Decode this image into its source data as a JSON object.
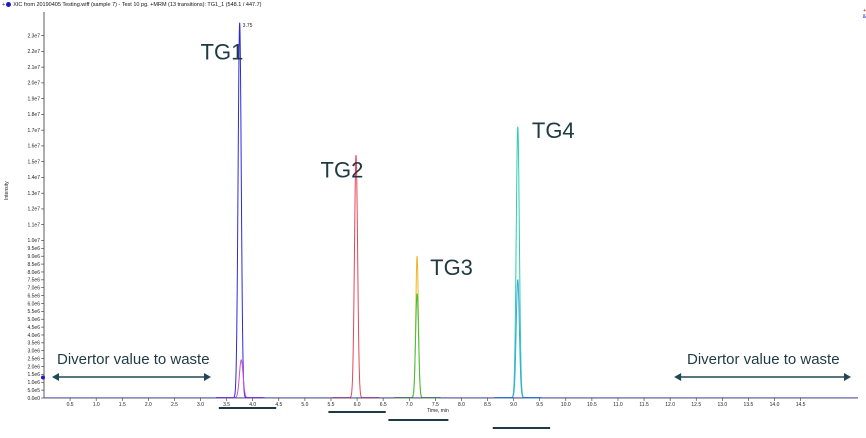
{
  "header": {
    "title": "XIC from 20190405 Testing.wiff (sample 7) - Test 10 pg. +MRM (13 transitions): TG1_1 (548.1 / 447.7)"
  },
  "legend_marks": [
    "+",
    "&"
  ],
  "chart_data": {
    "type": "line",
    "title": "XIC from 20190405 Testing.wiff (sample 7) - Test 10 pg. +MRM (13 transitions): TG1_1 (548.1 / 447.7)",
    "xlabel": "Time, min",
    "ylabel": "Intensity",
    "xlim": [
      0,
      15.6
    ],
    "ylim": [
      0,
      24500000
    ],
    "x_ticks": [
      "0.5",
      "1.0",
      "1.5",
      "2.0",
      "2.5",
      "3.0",
      "3.5",
      "4.0",
      "4.5",
      "5.0",
      "5.5",
      "6.0",
      "6.5",
      "7.0",
      "7.5",
      "8.0",
      "8.5",
      "9.0",
      "9.5",
      "10.0",
      "10.5",
      "11.0",
      "11.5",
      "12.0",
      "12.5",
      "13.0",
      "13.5",
      "14.0",
      "14.5"
    ],
    "y_ticks": [
      "0.0e0",
      "5.0e5",
      "1.0e6",
      "1.5e6",
      "2.0e6",
      "2.5e6",
      "3.0e6",
      "3.5e6",
      "4.0e6",
      "4.5e6",
      "5.0e6",
      "5.5e6",
      "6.0e6",
      "6.5e6",
      "7.0e6",
      "7.5e6",
      "8.0e6",
      "8.5e6",
      "9.0e6",
      "9.5e6",
      "1.0e7",
      "1.1e7",
      "1.2e7",
      "1.3e7",
      "1.4e7",
      "1.5e7",
      "1.6e7",
      "1.7e7",
      "1.8e7",
      "1.9e7",
      "2.0e7",
      "2.1e7",
      "2.2e7",
      "2.3e7"
    ],
    "peak_label": "3.75",
    "series": [
      {
        "label": "TG1",
        "color": "#2b2bd6",
        "peaks": [
          {
            "x": 3.75,
            "y": 23800000,
            "w": 0.03
          }
        ]
      },
      {
        "label": "",
        "color": "#d04fd0",
        "peaks": [
          {
            "x": 3.78,
            "y": 2400000,
            "w": 0.035
          }
        ]
      },
      {
        "label": "TG2",
        "color": "#e8455a",
        "peaks": [
          {
            "x": 5.98,
            "y": 15400000,
            "w": 0.03
          }
        ]
      },
      {
        "label": "",
        "color": "#f0b429",
        "peaks": [
          {
            "x": 7.15,
            "y": 9000000,
            "w": 0.025
          }
        ]
      },
      {
        "label": "TG3",
        "color": "#3fc03f",
        "peaks": [
          {
            "x": 7.15,
            "y": 6600000,
            "w": 0.028
          }
        ]
      },
      {
        "label": "TG4",
        "color": "#2ad0a8",
        "peaks": [
          {
            "x": 9.08,
            "y": 17200000,
            "w": 0.03
          }
        ]
      },
      {
        "label": "",
        "color": "#39a7df",
        "peaks": [
          {
            "x": 9.08,
            "y": 7500000,
            "w": 0.03
          }
        ]
      }
    ],
    "annotations": [
      {
        "text": "TG1",
        "x": 3.0,
        "y": 21500000
      },
      {
        "text": "TG2",
        "x": 5.3,
        "y": 14000000
      },
      {
        "text": "TG3",
        "x": 7.4,
        "y": 7800000
      },
      {
        "text": "TG4",
        "x": 9.35,
        "y": 16500000
      }
    ],
    "divertor": {
      "label": "Divertor value to waste",
      "left_range": [
        0,
        3.2
      ],
      "right_range": [
        12.0,
        15.6
      ]
    },
    "windows": [
      [
        3.35,
        4.45
      ],
      [
        5.45,
        6.55
      ],
      [
        6.6,
        7.75
      ],
      [
        8.6,
        9.7
      ]
    ]
  }
}
